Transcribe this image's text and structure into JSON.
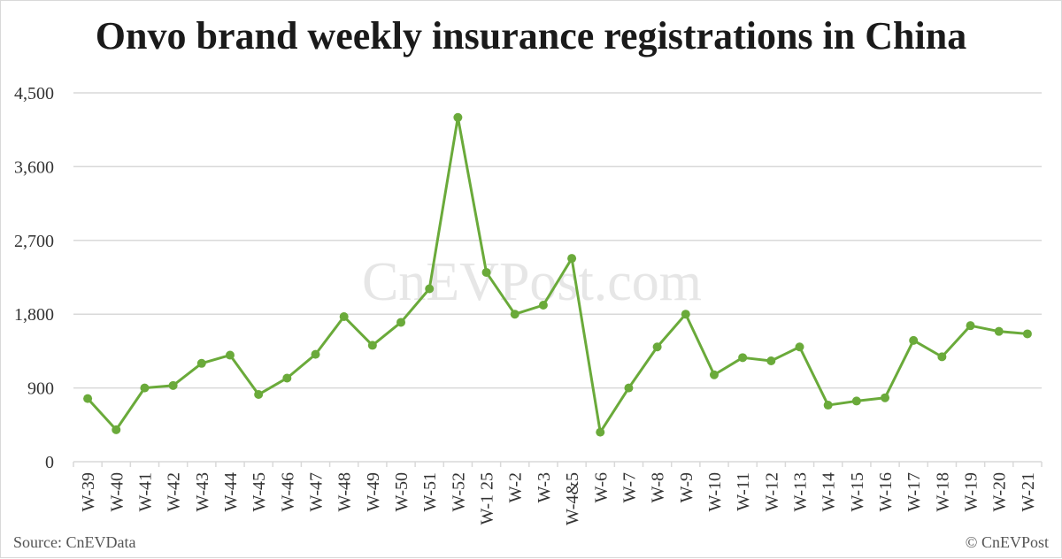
{
  "title": "Onvo brand weekly insurance registrations in China",
  "watermark": "CnEVPost.com",
  "source": "Source: CnEVData",
  "copyright": "© CnEVPost",
  "colors": {
    "line": "#6aaa3a",
    "grid": "#d9d9d9",
    "axis_text": "#333333",
    "watermark": "#e6e6e6"
  },
  "chart_data": {
    "type": "line",
    "title": "Onvo brand weekly insurance registrations in China",
    "xlabel": "",
    "ylabel": "",
    "ylim": [
      0,
      4500
    ],
    "yticks": [
      0,
      900,
      1800,
      2700,
      3600,
      4500
    ],
    "ytick_labels": [
      "0",
      "900",
      "1,800",
      "2,700",
      "3,600",
      "4,500"
    ],
    "grid": true,
    "categories": [
      "W-39",
      "W-40",
      "W-41",
      "W-42",
      "W-43",
      "W-44",
      "W-45",
      "W-46",
      "W-47",
      "W-48",
      "W-49",
      "W-50",
      "W-51",
      "W-52",
      "W-1 25",
      "W-2",
      "W-3",
      "W-4&5",
      "W-6",
      "W-7",
      "W-8",
      "W-9",
      "W-10",
      "W-11",
      "W-12",
      "W-13",
      "W-14",
      "W-15",
      "W-16",
      "W-17",
      "W-18",
      "W-19",
      "W-20",
      "W-21"
    ],
    "series": [
      {
        "name": "",
        "values": [
          770,
          390,
          900,
          930,
          1200,
          1300,
          820,
          1020,
          1310,
          1770,
          1420,
          1700,
          2110,
          4200,
          2310,
          1800,
          1910,
          2480,
          360,
          900,
          1400,
          1800,
          1060,
          1270,
          1230,
          1400,
          690,
          740,
          780,
          1480,
          1280,
          1660,
          1590,
          1560
        ]
      }
    ]
  }
}
